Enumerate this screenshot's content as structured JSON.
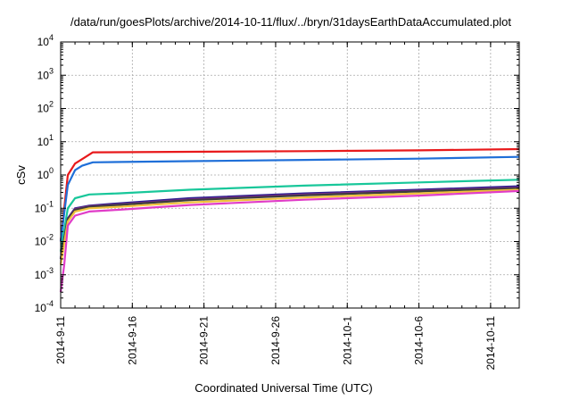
{
  "chart_data": {
    "type": "line",
    "title": "/data/run/goesPlots/archive/2014-10-11/flux/../bryn/31daysEarthDataAccumulated.plot",
    "xlabel": "Coordinated Universal Time (UTC)",
    "ylabel": "cSv",
    "y_scale": "log",
    "ylim": [
      0.0001,
      10000
    ],
    "y_ticks": [
      {
        "exp": "-4",
        "value": 0.0001
      },
      {
        "exp": "-3",
        "value": 0.001
      },
      {
        "exp": "-2",
        "value": 0.01
      },
      {
        "exp": "-1",
        "value": 0.1
      },
      {
        "exp": "0",
        "value": 1
      },
      {
        "exp": "1",
        "value": 10
      },
      {
        "exp": "2",
        "value": 100
      },
      {
        "exp": "3",
        "value": 1000
      },
      {
        "exp": "4",
        "value": 10000
      }
    ],
    "xlim": [
      "2014-09-11",
      "2014-10-13"
    ],
    "x_ticks": [
      "2014-9-11",
      "2014-9-16",
      "2014-9-21",
      "2014-9-26",
      "2014-10-1",
      "2014-10-6",
      "2014-10-11"
    ],
    "grid": true,
    "legend": "none",
    "series": [
      {
        "color": "#e8191b",
        "points": [
          [
            "2014-09-11",
            0.01
          ],
          [
            "2014-09-11 12:00",
            1.0
          ],
          [
            "2014-09-12",
            2.2
          ],
          [
            "2014-09-12 12:00",
            3.0
          ],
          [
            "2014-09-13 06:00",
            4.8
          ],
          [
            "2014-09-20",
            5.0
          ],
          [
            "2014-09-28",
            5.2
          ],
          [
            "2014-10-06",
            5.5
          ],
          [
            "2014-10-13",
            6.0
          ]
        ]
      },
      {
        "color": "#1f6fd8",
        "points": [
          [
            "2014-09-11",
            0.01
          ],
          [
            "2014-09-11 12:00",
            0.5
          ],
          [
            "2014-09-12",
            1.4
          ],
          [
            "2014-09-12 12:00",
            1.9
          ],
          [
            "2014-09-13 06:00",
            2.4
          ],
          [
            "2014-09-20",
            2.6
          ],
          [
            "2014-09-28",
            2.85
          ],
          [
            "2014-10-06",
            3.1
          ],
          [
            "2014-10-13",
            3.5
          ]
        ]
      },
      {
        "color": "#18c79a",
        "points": [
          [
            "2014-09-11",
            0.005
          ],
          [
            "2014-09-11 12:00",
            0.1
          ],
          [
            "2014-09-12",
            0.2
          ],
          [
            "2014-09-13",
            0.26
          ],
          [
            "2014-09-15",
            0.28
          ],
          [
            "2014-09-20",
            0.36
          ],
          [
            "2014-09-28",
            0.48
          ],
          [
            "2014-10-06",
            0.6
          ],
          [
            "2014-10-13",
            0.72
          ]
        ]
      },
      {
        "color": "#2a1f8e",
        "points": [
          [
            "2014-09-11",
            0.003
          ],
          [
            "2014-09-11 12:00",
            0.05
          ],
          [
            "2014-09-12",
            0.1
          ],
          [
            "2014-09-13",
            0.12
          ],
          [
            "2014-09-15",
            0.14
          ],
          [
            "2014-09-20",
            0.2
          ],
          [
            "2014-09-28",
            0.28
          ],
          [
            "2014-10-06",
            0.36
          ],
          [
            "2014-10-13",
            0.46
          ]
        ]
      },
      {
        "color": "#7b2b86",
        "points": [
          [
            "2014-09-11",
            0.003
          ],
          [
            "2014-09-11 12:00",
            0.048
          ],
          [
            "2014-09-12",
            0.095
          ],
          [
            "2014-09-13",
            0.115
          ],
          [
            "2014-09-15",
            0.13
          ],
          [
            "2014-09-20",
            0.185
          ],
          [
            "2014-09-28",
            0.26
          ],
          [
            "2014-10-06",
            0.34
          ],
          [
            "2014-10-13",
            0.42
          ]
        ]
      },
      {
        "color": "#3d3d3d",
        "points": [
          [
            "2014-09-11",
            0.003
          ],
          [
            "2014-09-11 12:00",
            0.046
          ],
          [
            "2014-09-12",
            0.09
          ],
          [
            "2014-09-13",
            0.11
          ],
          [
            "2014-09-15",
            0.125
          ],
          [
            "2014-09-20",
            0.175
          ],
          [
            "2014-09-28",
            0.245
          ],
          [
            "2014-10-06",
            0.32
          ],
          [
            "2014-10-13",
            0.4
          ]
        ]
      },
      {
        "color": "#f0c23a",
        "points": [
          [
            "2014-09-11",
            0.002
          ],
          [
            "2014-09-11 12:00",
            0.04
          ],
          [
            "2014-09-12",
            0.08
          ],
          [
            "2014-09-13",
            0.1
          ],
          [
            "2014-09-15",
            0.11
          ],
          [
            "2014-09-20",
            0.15
          ],
          [
            "2014-09-28",
            0.21
          ],
          [
            "2014-10-06",
            0.28
          ],
          [
            "2014-10-13",
            0.36
          ]
        ]
      },
      {
        "color": "#e03cc8",
        "points": [
          [
            "2014-09-11",
            0.0003
          ],
          [
            "2014-09-11 06:00",
            0.002
          ],
          [
            "2014-09-11 12:00",
            0.03
          ],
          [
            "2014-09-12",
            0.06
          ],
          [
            "2014-09-13",
            0.08
          ],
          [
            "2014-09-15",
            0.09
          ],
          [
            "2014-09-20",
            0.125
          ],
          [
            "2014-09-28",
            0.18
          ],
          [
            "2014-10-06",
            0.24
          ],
          [
            "2014-10-13",
            0.33
          ]
        ]
      }
    ]
  }
}
